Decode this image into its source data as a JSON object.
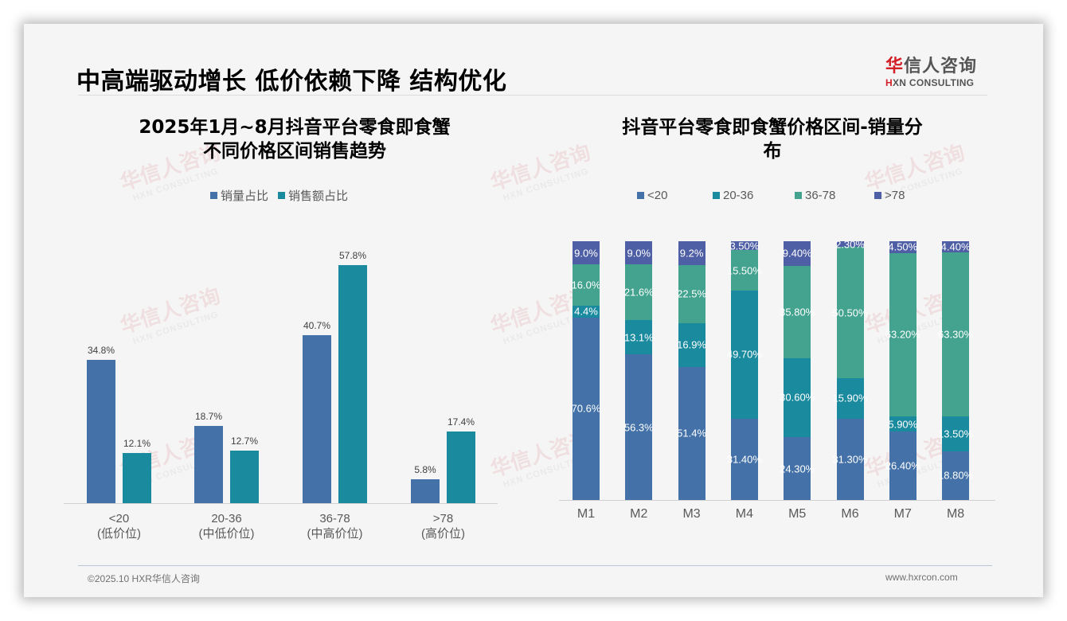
{
  "slide": {
    "title": "中高端驱动增长 低价依赖下降 结构优化",
    "logo": {
      "cn_accent": "华",
      "cn_rest": "信人咨询",
      "en_accent": "H",
      "en_rest": "XN CONSULTING"
    },
    "watermark": {
      "cn": "华信人咨询",
      "en": "HXN CONSULTING"
    },
    "footer": {
      "copyright": "©2025.10 HXR华信人咨询",
      "website": "www.hxrcon.com"
    }
  },
  "colors": {
    "volume": "#4472a8",
    "sales": "#1a8a9e",
    "lt20": "#4472a8",
    "r20_36": "#1a8a9e",
    "r36_78": "#43a38f",
    "gt78": "#4e5fa6"
  },
  "left_chart": {
    "title_line1": "2025年1月~8月抖音平台零食即食蟹",
    "title_line2": "不同价格区间销售趋势",
    "legend": [
      "销量占比",
      "销售额占比"
    ]
  },
  "right_chart": {
    "title_line1": "抖音平台零食即食蟹价格区间-销量分",
    "title_line2": "布",
    "legend": [
      "<20",
      "20-36",
      "36-78",
      ">78"
    ]
  },
  "chart_data": [
    {
      "type": "bar",
      "title": "2025年1月~8月抖音平台零食即食蟹不同价格区间销售趋势",
      "categories": [
        "<20",
        "20-36",
        "36-78",
        ">78"
      ],
      "category_sublabels": [
        "(低价位)",
        "(中低价位)",
        "(中高价位)",
        "(高价位)"
      ],
      "series": [
        {
          "name": "销量占比",
          "values": [
            34.8,
            18.7,
            40.7,
            5.8
          ],
          "labels": [
            "34.8%",
            "18.7%",
            "40.7%",
            "5.8%"
          ]
        },
        {
          "name": "销售额占比",
          "values": [
            12.1,
            12.7,
            57.8,
            17.4
          ],
          "labels": [
            "12.1%",
            "12.7%",
            "57.8%",
            "17.4%"
          ]
        }
      ],
      "xlabel": "",
      "ylabel": "",
      "ylim": [
        0,
        60
      ],
      "grid": false,
      "legend_position": "top",
      "unit": "%"
    },
    {
      "type": "bar",
      "stacked": true,
      "title": "抖音平台零食即食蟹价格区间-销量分布",
      "categories": [
        "M1",
        "M2",
        "M3",
        "M4",
        "M5",
        "M6",
        "M7",
        "M8"
      ],
      "series": [
        {
          "name": "<20",
          "values": [
            70.6,
            56.3,
            51.4,
            31.4,
            24.3,
            31.3,
            26.4,
            18.8
          ],
          "labels": [
            "70.6%",
            "56.3%",
            "51.4%",
            "31.40%",
            "24.30%",
            "31.30%",
            "26.40%",
            "18.80%"
          ]
        },
        {
          "name": "20-36",
          "values": [
            4.4,
            13.1,
            16.9,
            49.7,
            30.6,
            15.9,
            5.9,
            13.5
          ],
          "labels": [
            "4.4%",
            "13.1%",
            "16.9%",
            "49.70%",
            "30.60%",
            "15.90%",
            "5.90%",
            "13.50%"
          ]
        },
        {
          "name": "36-78",
          "values": [
            16.0,
            21.6,
            22.5,
            15.5,
            35.8,
            50.5,
            63.2,
            63.3
          ],
          "labels": [
            "16.0%",
            "21.6%",
            "22.5%",
            "15.50%",
            "35.80%",
            "50.50%",
            "63.20%",
            "63.30%"
          ]
        },
        {
          "name": ">78",
          "values": [
            9.0,
            9.0,
            9.2,
            3.5,
            9.4,
            2.3,
            4.5,
            4.4
          ],
          "labels": [
            "9.0%",
            "9.0%",
            "9.2%",
            "3.50%",
            "9.40%",
            "2.30%",
            "4.50%",
            "4.40%"
          ]
        }
      ],
      "xlabel": "",
      "ylabel": "",
      "ylim": [
        0,
        100
      ],
      "grid": false,
      "legend_position": "top",
      "unit": "%"
    }
  ]
}
